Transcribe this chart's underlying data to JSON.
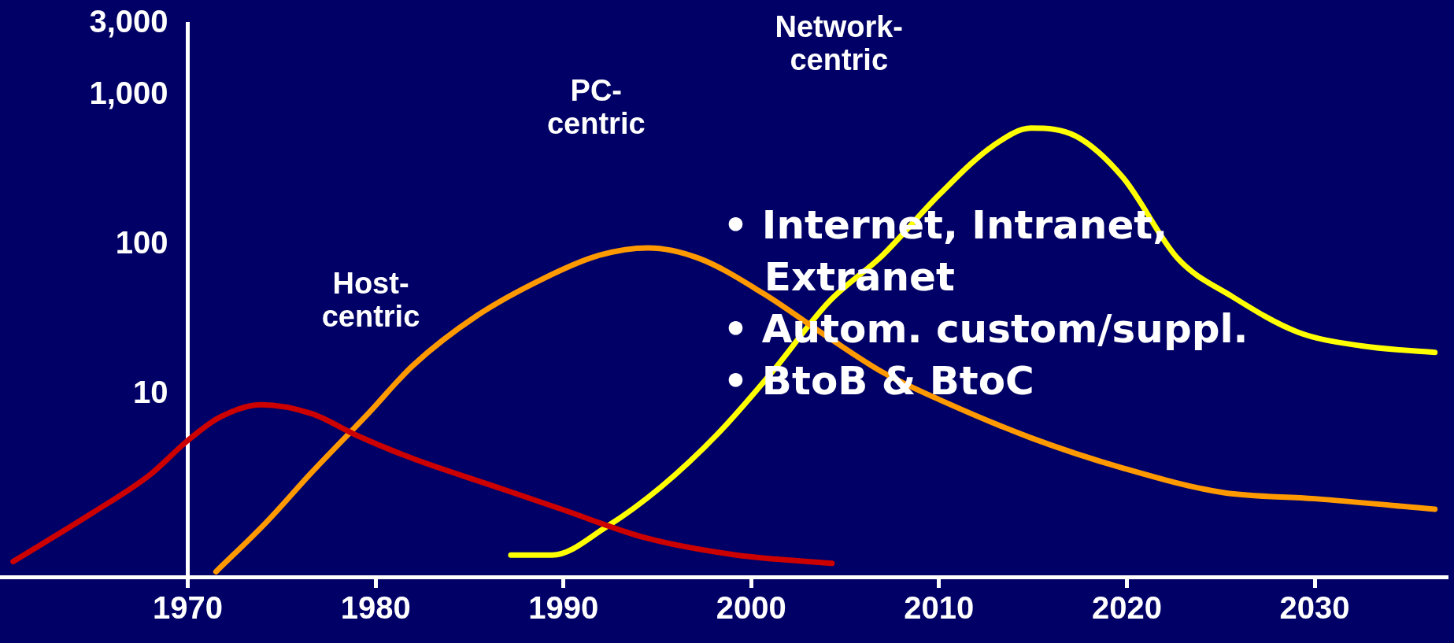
{
  "chart_data": {
    "type": "line",
    "log": "y",
    "xlim": [
      1960,
      2037
    ],
    "ylim": [
      0.6,
      3000
    ],
    "xticks": [
      1970,
      1980,
      1990,
      2000,
      2010,
      2020,
      2030
    ],
    "yticks": [
      10,
      100,
      {
        "value": 1000,
        "label": "1,000"
      },
      {
        "value": 3000,
        "label": "3,000"
      }
    ],
    "grid": false,
    "legend": false,
    "marker": "none",
    "line_style": "solid",
    "series": [
      {
        "color": "#cc0000",
        "x": [
          1960.7,
          1964.9,
          1968,
          1970,
          1971.7,
          1973.9,
          1976.6,
          1979,
          1982,
          1986.4,
          1989.9,
          1994.3,
          1999.2,
          2004.3
        ],
        "values": [
          0.76,
          1.6,
          2.9,
          4.9,
          7,
          8.5,
          7.4,
          5.3,
          3.7,
          2.4,
          1.7,
          1.1,
          0.84,
          0.74
        ]
      },
      {
        "color": "#ff9900",
        "x": [
          1971.5,
          1974.2,
          1976.6,
          1979.6,
          1982,
          1985.4,
          1988.9,
          1991.8,
          1994.5,
          1997.2,
          2000.6,
          2004.1,
          2007,
          2010,
          2014.9,
          2019.8,
          2025.1,
          2030,
          2036.4
        ],
        "values": [
          0.65,
          1.4,
          3,
          7.4,
          15.6,
          33.5,
          59,
          84,
          95,
          81,
          47.5,
          24,
          14,
          9.2,
          5.1,
          3.2,
          2.2,
          2,
          1.7
        ]
      },
      {
        "color": "#ffff00",
        "x": [
          1987.2,
          1989.4,
          1992.3,
          1995.2,
          1998.2,
          2001.1,
          2004.1,
          2007,
          2010,
          2012.9,
          2014.9,
          2017.3,
          2019.8,
          2022.7,
          2025.6,
          2029.1,
          2032.5,
          2036.4
        ],
        "values": [
          0.84,
          0.84,
          1.3,
          2.4,
          5.4,
          14,
          41,
          85,
          215,
          460,
          600,
          530,
          280,
          81,
          45,
          26,
          21,
          19
        ]
      }
    ],
    "annotations": [
      "Host-\ncentric",
      "PC-\ncentric",
      "Network-\ncentric",
      "• Internet, Intranet,\n   Extranet",
      "• Autom. custom/suppl.",
      "• BtoB & BtoC"
    ]
  }
}
